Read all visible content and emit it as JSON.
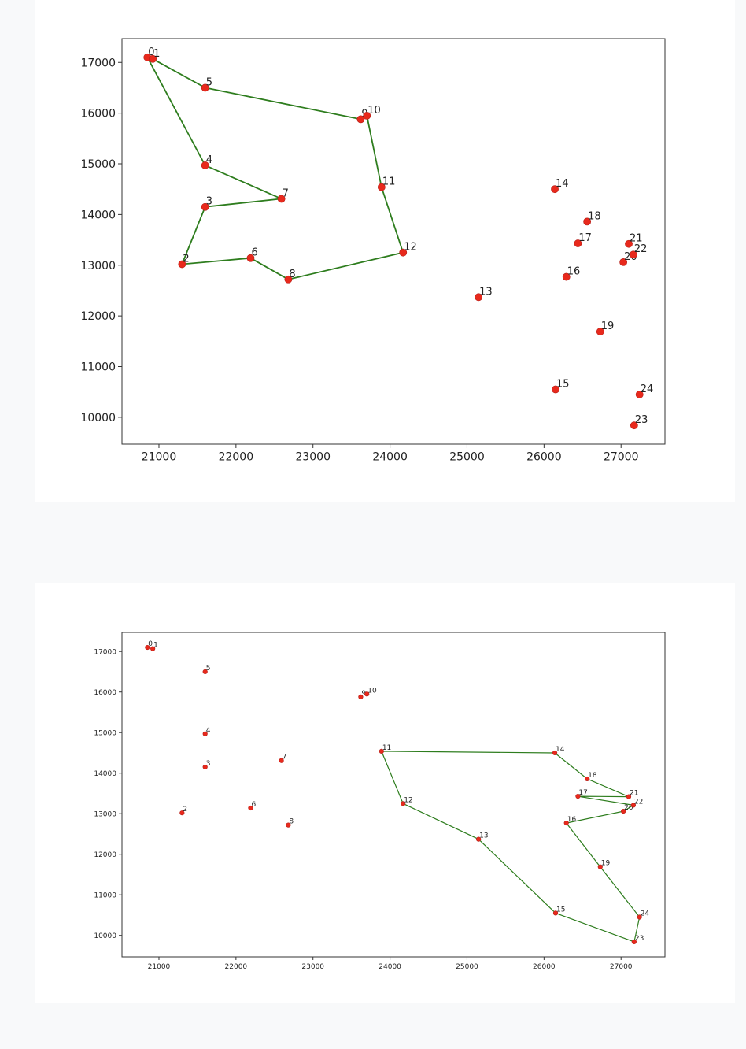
{
  "colors": {
    "route": "#2e7d1e",
    "point": "#e8291c",
    "point_edge": "#b5201a"
  },
  "chart_data": [
    {
      "type": "scatter",
      "title": "",
      "xlabel": "",
      "ylabel": "",
      "xlim": [
        20520,
        27570
      ],
      "ylim": [
        9470,
        17470
      ],
      "xticks": [
        "21000",
        "22000",
        "23000",
        "24000",
        "25000",
        "26000",
        "27000"
      ],
      "yticks": [
        "10000",
        "11000",
        "12000",
        "13000",
        "14000",
        "15000",
        "16000",
        "17000"
      ],
      "grid": false,
      "points": [
        {
          "label": "0",
          "x": 20850,
          "y": 17100
        },
        {
          "label": "1",
          "x": 20920,
          "y": 17070
        },
        {
          "label": "2",
          "x": 21300,
          "y": 13020
        },
        {
          "label": "3",
          "x": 21600,
          "y": 14150
        },
        {
          "label": "4",
          "x": 21600,
          "y": 14970
        },
        {
          "label": "5",
          "x": 21600,
          "y": 16500
        },
        {
          "label": "6",
          "x": 22190,
          "y": 13140
        },
        {
          "label": "7",
          "x": 22590,
          "y": 14310
        },
        {
          "label": "8",
          "x": 22680,
          "y": 12720
        },
        {
          "label": "9",
          "x": 23620,
          "y": 15880
        },
        {
          "label": "10",
          "x": 23700,
          "y": 15950
        },
        {
          "label": "11",
          "x": 23890,
          "y": 14540
        },
        {
          "label": "12",
          "x": 24170,
          "y": 13250
        },
        {
          "label": "13",
          "x": 25150,
          "y": 12370
        },
        {
          "label": "14",
          "x": 26140,
          "y": 14500
        },
        {
          "label": "15",
          "x": 26150,
          "y": 10550
        },
        {
          "label": "16",
          "x": 26290,
          "y": 12770
        },
        {
          "label": "17",
          "x": 26440,
          "y": 13430
        },
        {
          "label": "18",
          "x": 26560,
          "y": 13860
        },
        {
          "label": "19",
          "x": 26730,
          "y": 11690
        },
        {
          "label": "20",
          "x": 27030,
          "y": 13060
        },
        {
          "label": "21",
          "x": 27100,
          "y": 13420
        },
        {
          "label": "22",
          "x": 27160,
          "y": 13210
        },
        {
          "label": "23",
          "x": 27170,
          "y": 9840
        },
        {
          "label": "24",
          "x": 27240,
          "y": 10450
        }
      ],
      "route": [
        "0",
        "1",
        "5",
        "9",
        "10",
        "11",
        "12",
        "8",
        "6",
        "2",
        "3",
        "7",
        "4",
        "0"
      ]
    },
    {
      "type": "scatter",
      "title": "",
      "xlabel": "",
      "ylabel": "",
      "xlim": [
        20520,
        27570
      ],
      "ylim": [
        9470,
        17470
      ],
      "xticks": [
        "21000",
        "22000",
        "23000",
        "24000",
        "25000",
        "26000",
        "27000"
      ],
      "yticks": [
        "10000",
        "11000",
        "12000",
        "13000",
        "14000",
        "15000",
        "16000",
        "17000"
      ],
      "grid": false,
      "points": [
        {
          "label": "0",
          "x": 20850,
          "y": 17100
        },
        {
          "label": "1",
          "x": 20920,
          "y": 17070
        },
        {
          "label": "2",
          "x": 21300,
          "y": 13020
        },
        {
          "label": "3",
          "x": 21600,
          "y": 14150
        },
        {
          "label": "4",
          "x": 21600,
          "y": 14970
        },
        {
          "label": "5",
          "x": 21600,
          "y": 16500
        },
        {
          "label": "6",
          "x": 22190,
          "y": 13140
        },
        {
          "label": "7",
          "x": 22590,
          "y": 14310
        },
        {
          "label": "8",
          "x": 22680,
          "y": 12720
        },
        {
          "label": "9",
          "x": 23620,
          "y": 15880
        },
        {
          "label": "10",
          "x": 23700,
          "y": 15950
        },
        {
          "label": "11",
          "x": 23890,
          "y": 14540
        },
        {
          "label": "12",
          "x": 24170,
          "y": 13250
        },
        {
          "label": "13",
          "x": 25150,
          "y": 12370
        },
        {
          "label": "14",
          "x": 26140,
          "y": 14500
        },
        {
          "label": "15",
          "x": 26150,
          "y": 10550
        },
        {
          "label": "16",
          "x": 26290,
          "y": 12770
        },
        {
          "label": "17",
          "x": 26440,
          "y": 13430
        },
        {
          "label": "18",
          "x": 26560,
          "y": 13860
        },
        {
          "label": "19",
          "x": 26730,
          "y": 11690
        },
        {
          "label": "20",
          "x": 27030,
          "y": 13060
        },
        {
          "label": "21",
          "x": 27100,
          "y": 13420
        },
        {
          "label": "22",
          "x": 27160,
          "y": 13210
        },
        {
          "label": "23",
          "x": 27170,
          "y": 9840
        },
        {
          "label": "24",
          "x": 27240,
          "y": 10450
        }
      ],
      "route": [
        "11",
        "14",
        "18",
        "21",
        "17",
        "22",
        "20",
        "16",
        "19",
        "24",
        "23",
        "15",
        "13",
        "12",
        "11"
      ]
    }
  ]
}
